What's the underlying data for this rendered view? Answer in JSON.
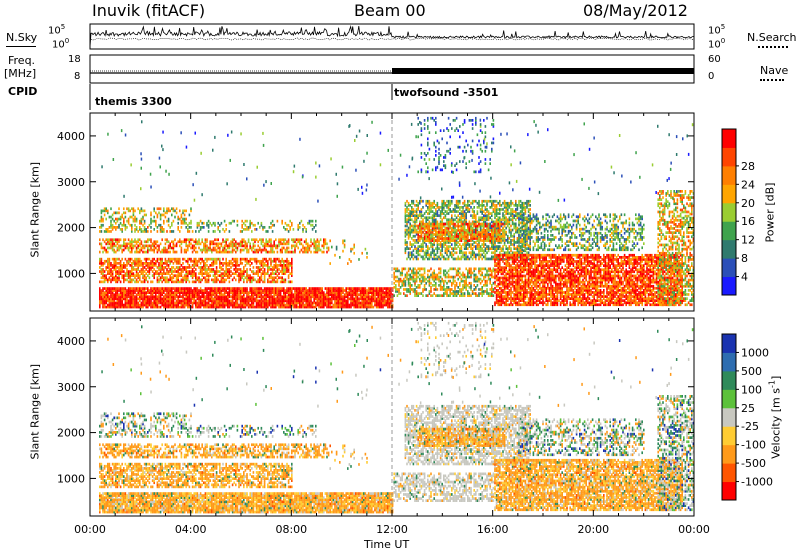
{
  "header": {
    "station": "Inuvik (fitACF)",
    "beam": "Beam 00",
    "date": "08/May/2012"
  },
  "left_labels": {
    "nsky": "N.Sky",
    "freq": "Freq.",
    "freq_unit": "[MHz]",
    "cpid": "CPID"
  },
  "right_labels": {
    "nsearch": "N.Search",
    "nave": "Nave"
  },
  "noise_axis": {
    "left_ticks": [
      "10^5",
      "10^0"
    ],
    "right_ticks": [
      "10^5",
      "10^0"
    ]
  },
  "freq_axis": {
    "left_ticks": [
      "18",
      "8"
    ],
    "right_ticks": [
      "60",
      "0"
    ]
  },
  "cpid_segments": [
    {
      "label": "themis 3300",
      "start_hour": 0,
      "end_hour": 12
    },
    {
      "label": "twofsound -3501",
      "start_hour": 12,
      "end_hour": 24
    }
  ],
  "chart_data": [
    {
      "type": "heatmap",
      "title": "",
      "ylabel": "Slant Range [km]",
      "xlabel": "",
      "x_range_hours": [
        0,
        24
      ],
      "y_range_km": [
        180,
        4500
      ],
      "y_ticks": [
        1000,
        2000,
        3000,
        4000
      ],
      "colorbar": {
        "label": "Power [dB]",
        "ticks": [
          "4",
          "8",
          "12",
          "16",
          "20",
          "24",
          "28"
        ],
        "colors": [
          "#1a1aff",
          "#2b4fb8",
          "#2f7a6e",
          "#3fa34d",
          "#9acd32",
          "#ffa500",
          "#ff7f00",
          "#ff4500",
          "#ff0000"
        ]
      }
    },
    {
      "type": "heatmap",
      "title": "",
      "ylabel": "Slant Range [km]",
      "xlabel": "Time UT",
      "x_range_hours": [
        0,
        24
      ],
      "y_range_km": [
        180,
        4500
      ],
      "y_ticks": [
        1000,
        2000,
        3000,
        4000
      ],
      "x_tick_labels": [
        "00:00",
        "04:00",
        "08:00",
        "12:00",
        "16:00",
        "20:00",
        "00:00"
      ],
      "colorbar": {
        "label": "Velocity [m s^-1]",
        "ticks": [
          "1000",
          "500",
          "100",
          "25",
          "-25",
          "-100",
          "-500",
          "-1000"
        ],
        "colors": [
          "#1a33b0",
          "#2e6db0",
          "#2f8a5a",
          "#5cc13a",
          "#c8c8c0",
          "#ffcc33",
          "#ff9a1a",
          "#ff5500",
          "#ff0000"
        ]
      }
    }
  ]
}
